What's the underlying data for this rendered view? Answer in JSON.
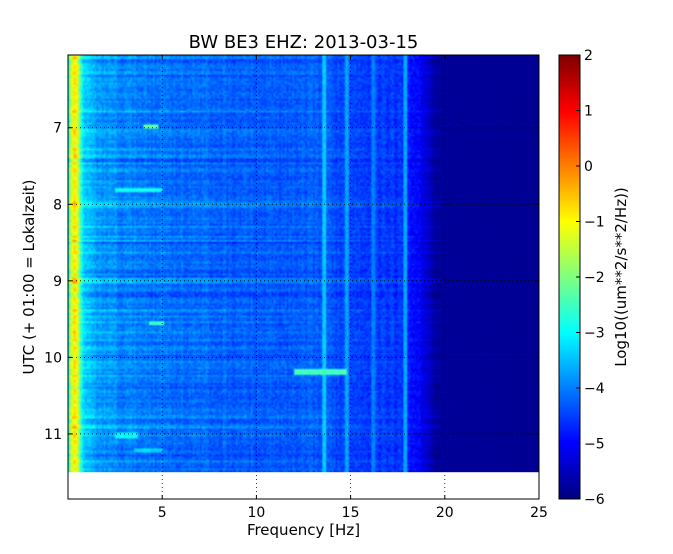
{
  "chart_data": {
    "type": "heatmap",
    "title": "BW BE3 EHZ: 2013-03-15",
    "xlabel": "Frequency [Hz]",
    "ylabel": "UTC (+ 01:00 = Lokalzeit)",
    "xlim": [
      0,
      25
    ],
    "ylim": [
      11.85,
      6.05
    ],
    "data_extent_y": [
      6.05,
      11.5
    ],
    "xticks": [
      5,
      10,
      15,
      20,
      25
    ],
    "xtick_labels": [
      "5",
      "10",
      "15",
      "20",
      "25"
    ],
    "yticks": [
      7,
      8,
      9,
      10,
      11
    ],
    "ytick_labels": [
      "7",
      "8",
      "9",
      "10",
      "11"
    ],
    "grid": true,
    "colormap": "jet",
    "colorbar": {
      "label": "Log10((um**2/s**2/Hz))",
      "min": -6,
      "max": 2,
      "ticks": [
        2,
        1,
        0,
        -1,
        -2,
        -3,
        -4,
        -5,
        -6
      ],
      "tick_labels": [
        "2",
        "1",
        "0",
        "−1",
        "−2",
        "−3",
        "−4",
        "−5",
        "−6"
      ]
    },
    "spectral_profile": {
      "frequency_hz": [
        0.0,
        0.15,
        0.35,
        0.55,
        0.7,
        0.85,
        1.0,
        1.5,
        2.0,
        3.0,
        4.0,
        5.0,
        6.0,
        8.0,
        10.0,
        12.0,
        13.5,
        14.0,
        15.0,
        16.0,
        17.0,
        18.0,
        18.5,
        19.0,
        19.5,
        25.0
      ],
      "log10_psd": [
        -3.3,
        -1.6,
        -0.9,
        -1.5,
        -2.8,
        -3.3,
        -3.5,
        -3.75,
        -3.85,
        -4.0,
        -4.05,
        -4.1,
        -4.15,
        -4.25,
        -4.3,
        -4.35,
        -4.3,
        -4.4,
        -4.45,
        -4.5,
        -4.55,
        -4.7,
        -4.95,
        -5.3,
        -5.8,
        -5.85
      ]
    },
    "persistent_lines": [
      {
        "frequency_hz": 13.6,
        "log10_psd": -3.4
      },
      {
        "frequency_hz": 14.8,
        "log10_psd": -3.7
      },
      {
        "frequency_hz": 16.2,
        "log10_psd": -4.0
      },
      {
        "frequency_hz": 17.9,
        "log10_psd": -3.7
      }
    ],
    "transient_events": [
      {
        "utc": 6.98,
        "f_start_hz": 4.0,
        "f_end_hz": 4.8,
        "log10_psd": -2.2
      },
      {
        "utc": 7.82,
        "f_start_hz": 2.5,
        "f_end_hz": 5.0,
        "log10_psd": -2.9
      },
      {
        "utc": 9.55,
        "f_start_hz": 4.3,
        "f_end_hz": 5.1,
        "log10_psd": -2.6
      },
      {
        "utc": 10.19,
        "f_start_hz": 12.0,
        "f_end_hz": 14.8,
        "log10_psd": -2.5
      },
      {
        "utc": 11.02,
        "f_start_hz": 2.5,
        "f_end_hz": 3.7,
        "log10_psd": -3.0
      },
      {
        "utc": 11.22,
        "f_start_hz": 3.5,
        "f_end_hz": 5.0,
        "log10_psd": -3.3
      }
    ]
  }
}
